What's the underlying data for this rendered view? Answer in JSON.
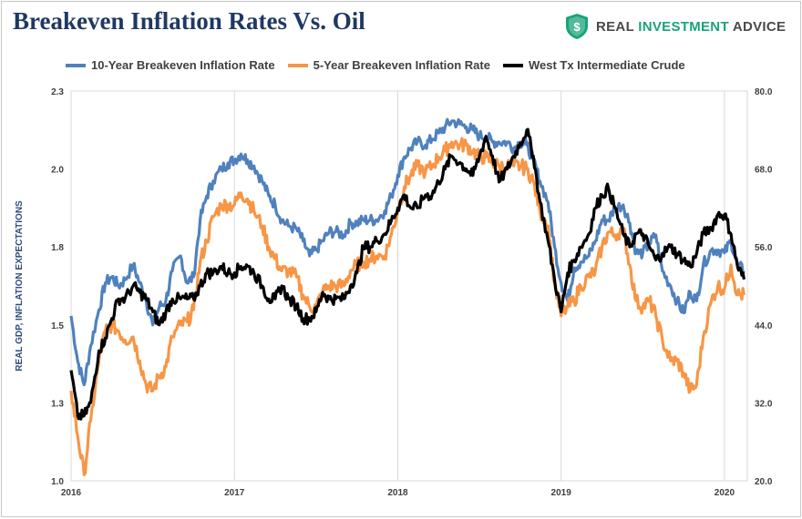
{
  "title": "Breakeven Inflation Rates Vs. Oil",
  "logo": {
    "word1": "REAL",
    "word2": "INVESTMENT",
    "word3": "ADVICE",
    "icon": "shield-dollar-icon"
  },
  "colors": {
    "ten_year": "#4f81bd",
    "five_year": "#f79646",
    "wti": "#000000",
    "title": "#1f3864",
    "brand": "#1aa37a"
  },
  "chart_data": {
    "type": "line",
    "title": "Breakeven Inflation Rates Vs. Oil",
    "ylabel": "REAL GDP, INFLATION EXPECTATIONS",
    "y2label": "",
    "x_ticks": [
      "2016",
      "2017",
      "2018",
      "2019",
      "2020"
    ],
    "xlim": [
      2016.0,
      2020.14
    ],
    "ylim": [
      1.0,
      2.3
    ],
    "y_ticks": [
      "1.0",
      "1.3",
      "1.5",
      "1.8",
      "2.0",
      "2.3"
    ],
    "y2lim": [
      20.0,
      80.0
    ],
    "y2_ticks": [
      "20.0",
      "32.0",
      "44.0",
      "56.0",
      "68.0",
      "80.0"
    ],
    "grid": "vertical",
    "legend_position": "top",
    "series": [
      {
        "name": "10-Year Breakeven Inflation Rate",
        "axis": "left",
        "x": [
          2016.0,
          2016.04,
          2016.08,
          2016.12,
          2016.17,
          2016.21,
          2016.25,
          2016.29,
          2016.33,
          2016.38,
          2016.42,
          2016.46,
          2016.5,
          2016.54,
          2016.58,
          2016.62,
          2016.67,
          2016.71,
          2016.75,
          2016.79,
          2016.83,
          2016.87,
          2016.92,
          2016.96,
          2017.0,
          2017.04,
          2017.08,
          2017.12,
          2017.17,
          2017.21,
          2017.25,
          2017.29,
          2017.33,
          2017.38,
          2017.42,
          2017.46,
          2017.5,
          2017.54,
          2017.58,
          2017.62,
          2017.67,
          2017.71,
          2017.75,
          2017.79,
          2017.83,
          2017.87,
          2017.92,
          2017.96,
          2018.0,
          2018.04,
          2018.08,
          2018.12,
          2018.17,
          2018.21,
          2018.25,
          2018.29,
          2018.33,
          2018.38,
          2018.42,
          2018.46,
          2018.5,
          2018.54,
          2018.58,
          2018.62,
          2018.67,
          2018.71,
          2018.75,
          2018.79,
          2018.83,
          2018.87,
          2018.92,
          2018.96,
          2019.0,
          2019.04,
          2019.08,
          2019.12,
          2019.17,
          2019.21,
          2019.25,
          2019.29,
          2019.33,
          2019.38,
          2019.42,
          2019.46,
          2019.5,
          2019.54,
          2019.58,
          2019.62,
          2019.67,
          2019.71,
          2019.75,
          2019.79,
          2019.83,
          2019.87,
          2019.92,
          2019.96,
          2020.0,
          2020.04,
          2020.08,
          2020.12
        ],
        "y": [
          1.55,
          1.4,
          1.32,
          1.45,
          1.57,
          1.66,
          1.68,
          1.65,
          1.67,
          1.72,
          1.66,
          1.6,
          1.52,
          1.58,
          1.6,
          1.7,
          1.75,
          1.66,
          1.68,
          1.87,
          1.95,
          2.0,
          2.04,
          2.06,
          2.07,
          2.09,
          2.07,
          2.05,
          2.0,
          1.95,
          1.92,
          1.87,
          1.85,
          1.84,
          1.8,
          1.75,
          1.77,
          1.8,
          1.83,
          1.83,
          1.82,
          1.86,
          1.86,
          1.87,
          1.87,
          1.87,
          1.9,
          1.95,
          2.02,
          2.08,
          2.11,
          2.13,
          2.12,
          2.14,
          2.16,
          2.18,
          2.2,
          2.19,
          2.18,
          2.17,
          2.15,
          2.15,
          2.13,
          2.13,
          2.13,
          2.11,
          2.13,
          2.12,
          2.07,
          2.0,
          1.93,
          1.78,
          1.66,
          1.6,
          1.71,
          1.73,
          1.75,
          1.8,
          1.87,
          1.87,
          1.91,
          1.92,
          1.86,
          1.76,
          1.76,
          1.79,
          1.82,
          1.7,
          1.65,
          1.6,
          1.56,
          1.63,
          1.6,
          1.72,
          1.77,
          1.77,
          1.76,
          1.8,
          1.72,
          1.7
        ]
      },
      {
        "name": "5-Year Breakeven Inflation Rate",
        "axis": "left",
        "x": [
          2016.0,
          2016.04,
          2016.08,
          2016.12,
          2016.17,
          2016.21,
          2016.25,
          2016.29,
          2016.33,
          2016.38,
          2016.42,
          2016.46,
          2016.5,
          2016.54,
          2016.58,
          2016.62,
          2016.67,
          2016.71,
          2016.75,
          2016.79,
          2016.83,
          2016.87,
          2016.92,
          2016.96,
          2017.0,
          2017.04,
          2017.08,
          2017.12,
          2017.17,
          2017.21,
          2017.25,
          2017.29,
          2017.33,
          2017.38,
          2017.42,
          2017.46,
          2017.5,
          2017.54,
          2017.58,
          2017.62,
          2017.67,
          2017.71,
          2017.75,
          2017.79,
          2017.83,
          2017.87,
          2017.92,
          2017.96,
          2018.0,
          2018.04,
          2018.08,
          2018.12,
          2018.17,
          2018.21,
          2018.25,
          2018.29,
          2018.33,
          2018.38,
          2018.42,
          2018.46,
          2018.5,
          2018.54,
          2018.58,
          2018.62,
          2018.67,
          2018.71,
          2018.75,
          2018.79,
          2018.83,
          2018.87,
          2018.92,
          2018.96,
          2019.0,
          2019.04,
          2019.08,
          2019.12,
          2019.17,
          2019.21,
          2019.25,
          2019.29,
          2019.33,
          2019.38,
          2019.42,
          2019.46,
          2019.5,
          2019.54,
          2019.58,
          2019.62,
          2019.67,
          2019.71,
          2019.75,
          2019.79,
          2019.83,
          2019.87,
          2019.92,
          2019.96,
          2020.0,
          2020.04,
          2020.08,
          2020.12
        ],
        "y": [
          1.3,
          1.15,
          1.02,
          1.2,
          1.4,
          1.5,
          1.52,
          1.5,
          1.47,
          1.48,
          1.4,
          1.32,
          1.3,
          1.35,
          1.38,
          1.48,
          1.52,
          1.53,
          1.57,
          1.73,
          1.8,
          1.88,
          1.92,
          1.92,
          1.92,
          1.96,
          1.94,
          1.9,
          1.85,
          1.78,
          1.74,
          1.7,
          1.7,
          1.68,
          1.62,
          1.58,
          1.58,
          1.63,
          1.65,
          1.65,
          1.65,
          1.7,
          1.72,
          1.73,
          1.74,
          1.75,
          1.75,
          1.82,
          1.9,
          1.98,
          2.02,
          2.05,
          2.03,
          2.05,
          2.08,
          2.1,
          2.13,
          2.12,
          2.12,
          2.1,
          2.08,
          2.08,
          2.06,
          2.05,
          2.05,
          2.05,
          2.05,
          2.04,
          2.0,
          1.9,
          1.85,
          1.66,
          1.55,
          1.58,
          1.6,
          1.65,
          1.68,
          1.7,
          1.78,
          1.83,
          1.82,
          1.84,
          1.72,
          1.6,
          1.58,
          1.6,
          1.55,
          1.47,
          1.4,
          1.4,
          1.36,
          1.3,
          1.32,
          1.48,
          1.6,
          1.65,
          1.64,
          1.72,
          1.62,
          1.62
        ]
      },
      {
        "name": "West Tx Intermediate Crude",
        "axis": "right",
        "x": [
          2016.0,
          2016.04,
          2016.08,
          2016.12,
          2016.17,
          2016.21,
          2016.25,
          2016.29,
          2016.33,
          2016.38,
          2016.42,
          2016.46,
          2016.5,
          2016.54,
          2016.58,
          2016.62,
          2016.67,
          2016.71,
          2016.75,
          2016.79,
          2016.83,
          2016.87,
          2016.92,
          2016.96,
          2017.0,
          2017.04,
          2017.08,
          2017.12,
          2017.17,
          2017.21,
          2017.25,
          2017.29,
          2017.33,
          2017.38,
          2017.42,
          2017.46,
          2017.5,
          2017.54,
          2017.58,
          2017.62,
          2017.67,
          2017.71,
          2017.75,
          2017.79,
          2017.83,
          2017.87,
          2017.92,
          2017.96,
          2018.0,
          2018.04,
          2018.08,
          2018.12,
          2018.17,
          2018.21,
          2018.25,
          2018.29,
          2018.33,
          2018.38,
          2018.42,
          2018.46,
          2018.5,
          2018.54,
          2018.58,
          2018.62,
          2018.67,
          2018.71,
          2018.75,
          2018.79,
          2018.83,
          2018.87,
          2018.92,
          2018.96,
          2019.0,
          2019.04,
          2019.08,
          2019.12,
          2019.17,
          2019.21,
          2019.25,
          2019.29,
          2019.33,
          2019.38,
          2019.42,
          2019.46,
          2019.5,
          2019.54,
          2019.58,
          2019.62,
          2019.67,
          2019.71,
          2019.75,
          2019.79,
          2019.83,
          2019.87,
          2019.92,
          2019.96,
          2020.0,
          2020.04,
          2020.08,
          2020.12
        ],
        "y": [
          37,
          30,
          30,
          32,
          40,
          42,
          45,
          48,
          48,
          50,
          49,
          48,
          46,
          44,
          46,
          48,
          48,
          48,
          48,
          50,
          52,
          52,
          53,
          52,
          52,
          53,
          53,
          52,
          50,
          48,
          48,
          50,
          48,
          47,
          45,
          45,
          46,
          49,
          48,
          48,
          48,
          50,
          52,
          56,
          56,
          57,
          58,
          60,
          62,
          64,
          62,
          62,
          64,
          64,
          66,
          68,
          70,
          69,
          68,
          67,
          70,
          73,
          70,
          66,
          68,
          70,
          72,
          74,
          70,
          63,
          57,
          51,
          46,
          52,
          54,
          56,
          58,
          62,
          64,
          65,
          62,
          58,
          56,
          58,
          58,
          56,
          54,
          55,
          56,
          55,
          54,
          53,
          55,
          58,
          59,
          61,
          61,
          58,
          53,
          51
        ]
      }
    ]
  }
}
